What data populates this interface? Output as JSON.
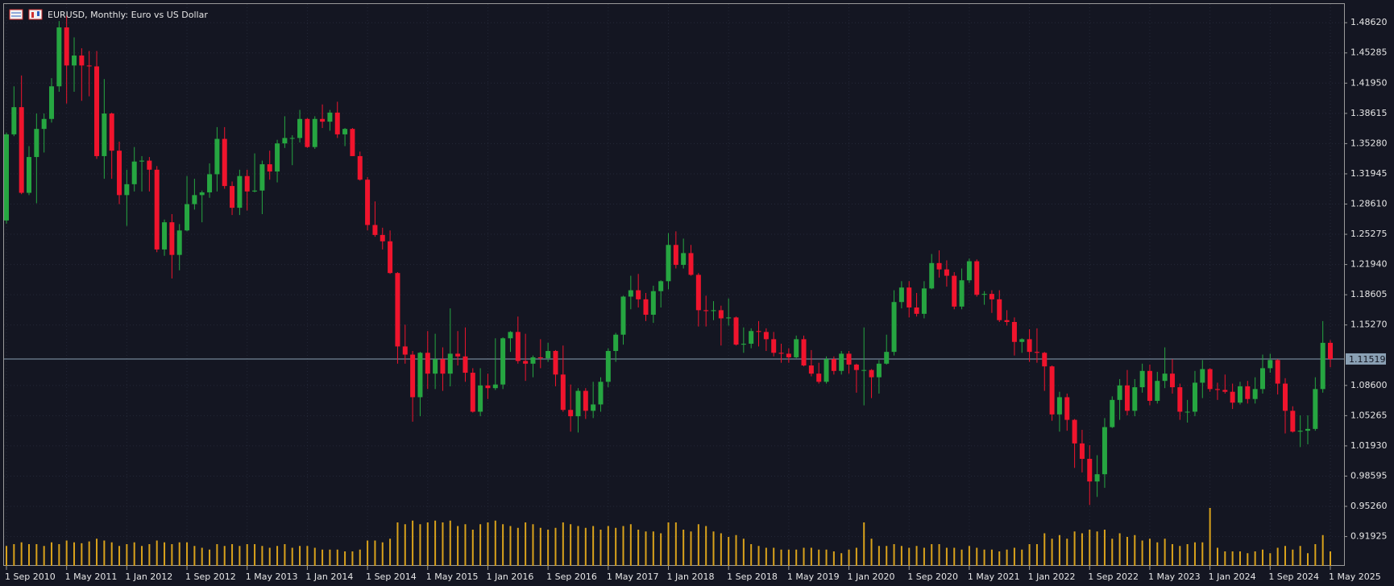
{
  "chart_data": {
    "type": "candlestick",
    "title": "EURUSD, Monthly:  Euro vs US Dollar",
    "bull_color": "#26a641",
    "bear_color": "#f0142d",
    "volume_color": "#d9a21b",
    "grid": true,
    "ylim": [
      0.8869,
      1.5068
    ],
    "yticks": [
      {
        "value": 1.4862,
        "label": "1.48620"
      },
      1.45285,
      {
        "value": 1.4195,
        "label": "1.41950"
      },
      1.38615,
      {
        "value": 1.3528,
        "label": "1.35280"
      },
      1.31945,
      {
        "value": 1.2861,
        "label": "1.28610"
      },
      1.25275,
      {
        "value": 1.2194,
        "label": "1.21940"
      },
      1.18605,
      {
        "value": 1.1527,
        "label": "1.15270"
      },
      {
        "value": 1.086,
        "label": "1.08600"
      },
      1.05265,
      {
        "value": 1.0193,
        "label": "1.01930"
      },
      0.98595,
      {
        "value": 0.9526,
        "label": "0.95260"
      },
      0.91925
    ],
    "current_price": 1.11519,
    "categories": [
      "1 Sep 2010",
      null,
      null,
      null,
      null,
      null,
      null,
      null,
      "1 May 2011",
      null,
      null,
      null,
      null,
      null,
      null,
      null,
      "1 Jan 2012",
      null,
      null,
      null,
      null,
      null,
      null,
      null,
      "1 Sep 2012",
      null,
      null,
      null,
      null,
      null,
      null,
      null,
      "1 May 2013",
      null,
      null,
      null,
      null,
      null,
      null,
      null,
      "1 Jan 2014",
      null,
      null,
      null,
      null,
      null,
      null,
      null,
      "1 Sep 2014",
      null,
      null,
      null,
      null,
      null,
      null,
      null,
      "1 May 2015",
      null,
      null,
      null,
      null,
      null,
      null,
      null,
      "1 Jan 2016",
      null,
      null,
      null,
      null,
      null,
      null,
      null,
      "1 Sep 2016",
      null,
      null,
      null,
      null,
      null,
      null,
      null,
      "1 May 2017",
      null,
      null,
      null,
      null,
      null,
      null,
      null,
      "1 Jan 2018",
      null,
      null,
      null,
      null,
      null,
      null,
      null,
      "1 Sep 2018",
      null,
      null,
      null,
      null,
      null,
      null,
      null,
      "1 May 2019",
      null,
      null,
      null,
      null,
      null,
      null,
      null,
      "1 Jan 2020",
      null,
      null,
      null,
      null,
      null,
      null,
      null,
      "1 Sep 2020",
      null,
      null,
      null,
      null,
      null,
      null,
      null,
      "1 May 2021",
      null,
      null,
      null,
      null,
      null,
      null,
      null,
      "1 Jan 2022",
      null,
      null,
      null,
      null,
      null,
      null,
      null,
      "1 Sep 2022",
      null,
      null,
      null,
      null,
      null,
      null,
      null,
      "1 May 2023",
      null,
      null,
      null,
      null,
      null,
      null,
      null,
      "1 Jan 2024",
      null,
      null,
      null,
      null,
      null,
      null,
      null,
      "1 Sep 2024",
      null,
      null,
      null,
      null,
      null,
      null,
      null,
      "1 May 2025"
    ],
    "candles": [
      [
        1.268,
        1.365,
        1.2645,
        1.363
      ],
      [
        1.363,
        1.416,
        1.361,
        1.393
      ],
      [
        1.393,
        1.428,
        1.297,
        1.2985
      ],
      [
        1.2985,
        1.35,
        1.296,
        1.338
      ],
      [
        1.338,
        1.386,
        1.287,
        1.369
      ],
      [
        1.369,
        1.386,
        1.343,
        1.38
      ],
      [
        1.38,
        1.425,
        1.376,
        1.416
      ],
      [
        1.416,
        1.488,
        1.41,
        1.481
      ],
      [
        1.481,
        1.494,
        1.397,
        1.439
      ],
      [
        1.439,
        1.47,
        1.41,
        1.45
      ],
      [
        1.45,
        1.458,
        1.4,
        1.439
      ],
      [
        1.439,
        1.455,
        1.405,
        1.438
      ],
      [
        1.438,
        1.455,
        1.336,
        1.339
      ],
      [
        1.339,
        1.424,
        1.314,
        1.386
      ],
      [
        1.386,
        1.387,
        1.314,
        1.345
      ],
      [
        1.345,
        1.355,
        1.286,
        1.296
      ],
      [
        1.296,
        1.324,
        1.262,
        1.308
      ],
      [
        1.308,
        1.349,
        1.3,
        1.333
      ],
      [
        1.333,
        1.339,
        1.3,
        1.334
      ],
      [
        1.334,
        1.338,
        1.3,
        1.324
      ],
      [
        1.324,
        1.328,
        1.233,
        1.236
      ],
      [
        1.236,
        1.269,
        1.229,
        1.266
      ],
      [
        1.266,
        1.275,
        1.204,
        1.23
      ],
      [
        1.23,
        1.264,
        1.213,
        1.257
      ],
      [
        1.257,
        1.317,
        1.256,
        1.286
      ],
      [
        1.286,
        1.314,
        1.28,
        1.296
      ],
      [
        1.296,
        1.301,
        1.266,
        1.299
      ],
      [
        1.299,
        1.331,
        1.293,
        1.319
      ],
      [
        1.319,
        1.371,
        1.3,
        1.358
      ],
      [
        1.358,
        1.371,
        1.303,
        1.306
      ],
      [
        1.306,
        1.311,
        1.274,
        1.282
      ],
      [
        1.282,
        1.324,
        1.274,
        1.317
      ],
      [
        1.317,
        1.324,
        1.279,
        1.3
      ],
      [
        1.3,
        1.342,
        1.299,
        1.301
      ],
      [
        1.301,
        1.334,
        1.275,
        1.33
      ],
      [
        1.33,
        1.345,
        1.313,
        1.322
      ],
      [
        1.322,
        1.357,
        1.31,
        1.353
      ],
      [
        1.353,
        1.383,
        1.348,
        1.359
      ],
      [
        1.359,
        1.362,
        1.329,
        1.359
      ],
      [
        1.359,
        1.39,
        1.354,
        1.38
      ],
      [
        1.38,
        1.381,
        1.348,
        1.349
      ],
      [
        1.349,
        1.383,
        1.347,
        1.38
      ],
      [
        1.38,
        1.396,
        1.37,
        1.377
      ],
      [
        1.377,
        1.39,
        1.367,
        1.387
      ],
      [
        1.387,
        1.399,
        1.359,
        1.363
      ],
      [
        1.363,
        1.37,
        1.35,
        1.369
      ],
      [
        1.369,
        1.37,
        1.339,
        1.339
      ],
      [
        1.339,
        1.344,
        1.312,
        1.313
      ],
      [
        1.313,
        1.316,
        1.257,
        1.263
      ],
      [
        1.263,
        1.289,
        1.25,
        1.252
      ],
      [
        1.252,
        1.26,
        1.236,
        1.245
      ],
      [
        1.245,
        1.257,
        1.209,
        1.21
      ],
      [
        1.21,
        1.211,
        1.11,
        1.129
      ],
      [
        1.129,
        1.153,
        1.11,
        1.12
      ],
      [
        1.12,
        1.124,
        1.046,
        1.073
      ],
      [
        1.073,
        1.123,
        1.052,
        1.122
      ],
      [
        1.122,
        1.146,
        1.082,
        1.099
      ],
      [
        1.099,
        1.143,
        1.082,
        1.115
      ],
      [
        1.115,
        1.128,
        1.08,
        1.099
      ],
      [
        1.099,
        1.171,
        1.085,
        1.121
      ],
      [
        1.121,
        1.146,
        1.108,
        1.118
      ],
      [
        1.118,
        1.15,
        1.09,
        1.1
      ],
      [
        1.1,
        1.105,
        1.056,
        1.057
      ],
      [
        1.057,
        1.105,
        1.052,
        1.086
      ],
      [
        1.086,
        1.099,
        1.071,
        1.083
      ],
      [
        1.083,
        1.138,
        1.081,
        1.087
      ],
      [
        1.087,
        1.139,
        1.082,
        1.138
      ],
      [
        1.138,
        1.146,
        1.123,
        1.145
      ],
      [
        1.145,
        1.162,
        1.11,
        1.113
      ],
      [
        1.113,
        1.143,
        1.091,
        1.11
      ],
      [
        1.11,
        1.119,
        1.095,
        1.117
      ],
      [
        1.117,
        1.137,
        1.105,
        1.116
      ],
      [
        1.116,
        1.133,
        1.112,
        1.124
      ],
      [
        1.124,
        1.125,
        1.085,
        1.098
      ],
      [
        1.098,
        1.13,
        1.057,
        1.059
      ],
      [
        1.059,
        1.087,
        1.035,
        1.052
      ],
      [
        1.052,
        1.083,
        1.034,
        1.08
      ],
      [
        1.08,
        1.083,
        1.049,
        1.058
      ],
      [
        1.058,
        1.09,
        1.05,
        1.065
      ],
      [
        1.065,
        1.095,
        1.057,
        1.09
      ],
      [
        1.09,
        1.127,
        1.084,
        1.124
      ],
      [
        1.124,
        1.144,
        1.112,
        1.142
      ],
      [
        1.142,
        1.185,
        1.131,
        1.184
      ],
      [
        1.184,
        1.207,
        1.17,
        1.191
      ],
      [
        1.191,
        1.209,
        1.172,
        1.181
      ],
      [
        1.181,
        1.188,
        1.157,
        1.164
      ],
      [
        1.164,
        1.196,
        1.155,
        1.19
      ],
      [
        1.19,
        1.202,
        1.172,
        1.201
      ],
      [
        1.201,
        1.254,
        1.192,
        1.241
      ],
      [
        1.241,
        1.256,
        1.215,
        1.219
      ],
      [
        1.219,
        1.248,
        1.215,
        1.232
      ],
      [
        1.232,
        1.241,
        1.207,
        1.208
      ],
      [
        1.208,
        1.21,
        1.151,
        1.169
      ],
      [
        1.169,
        1.185,
        1.151,
        1.168
      ],
      [
        1.168,
        1.179,
        1.158,
        1.169
      ],
      [
        1.169,
        1.174,
        1.13,
        1.16
      ],
      [
        1.16,
        1.182,
        1.152,
        1.161
      ],
      [
        1.161,
        1.162,
        1.13,
        1.131
      ],
      [
        1.131,
        1.15,
        1.122,
        1.132
      ],
      [
        1.132,
        1.149,
        1.127,
        1.146
      ],
      [
        1.146,
        1.157,
        1.129,
        1.145
      ],
      [
        1.145,
        1.149,
        1.124,
        1.137
      ],
      [
        1.137,
        1.145,
        1.118,
        1.122
      ],
      [
        1.122,
        1.132,
        1.111,
        1.121
      ],
      [
        1.121,
        1.127,
        1.111,
        1.117
      ],
      [
        1.117,
        1.141,
        1.116,
        1.137
      ],
      [
        1.137,
        1.141,
        1.107,
        1.108
      ],
      [
        1.108,
        1.125,
        1.096,
        1.099
      ],
      [
        1.099,
        1.111,
        1.088,
        1.09
      ],
      [
        1.09,
        1.118,
        1.088,
        1.115
      ],
      [
        1.115,
        1.118,
        1.098,
        1.102
      ],
      [
        1.102,
        1.124,
        1.098,
        1.121
      ],
      [
        1.121,
        1.124,
        1.099,
        1.109
      ],
      [
        1.109,
        1.11,
        1.078,
        1.103
      ],
      [
        1.103,
        1.15,
        1.064,
        1.103
      ],
      [
        1.103,
        1.104,
        1.072,
        1.095
      ],
      [
        1.095,
        1.114,
        1.077,
        1.11
      ],
      [
        1.11,
        1.142,
        1.109,
        1.123
      ],
      [
        1.123,
        1.191,
        1.119,
        1.178
      ],
      [
        1.178,
        1.201,
        1.171,
        1.194
      ],
      [
        1.194,
        1.201,
        1.161,
        1.172
      ],
      [
        1.172,
        1.188,
        1.162,
        1.165
      ],
      [
        1.165,
        1.201,
        1.16,
        1.193
      ],
      [
        1.193,
        1.231,
        1.192,
        1.221
      ],
      [
        1.221,
        1.235,
        1.205,
        1.214
      ],
      [
        1.214,
        1.224,
        1.195,
        1.207
      ],
      [
        1.207,
        1.211,
        1.17,
        1.173
      ],
      [
        1.173,
        1.215,
        1.17,
        1.202
      ],
      [
        1.202,
        1.226,
        1.199,
        1.223
      ],
      [
        1.223,
        1.225,
        1.184,
        1.186
      ],
      [
        1.186,
        1.19,
        1.175,
        1.187
      ],
      [
        1.187,
        1.191,
        1.166,
        1.181
      ],
      [
        1.181,
        1.191,
        1.156,
        1.158
      ],
      [
        1.158,
        1.169,
        1.152,
        1.156
      ],
      [
        1.156,
        1.161,
        1.119,
        1.134
      ],
      [
        1.134,
        1.138,
        1.122,
        1.137
      ],
      [
        1.137,
        1.148,
        1.112,
        1.123
      ],
      [
        1.123,
        1.149,
        1.111,
        1.122
      ],
      [
        1.122,
        1.123,
        1.08,
        1.107
      ],
      [
        1.107,
        1.108,
        1.047,
        1.054
      ],
      [
        1.054,
        1.079,
        1.035,
        1.073
      ],
      [
        1.073,
        1.077,
        1.036,
        1.048
      ],
      [
        1.048,
        1.049,
        0.995,
        1.022
      ],
      [
        1.022,
        1.037,
        0.99,
        1.005
      ],
      [
        1.005,
        1.02,
        0.954,
        0.98
      ],
      [
        0.98,
        1.009,
        0.963,
        0.988
      ],
      [
        0.988,
        1.05,
        0.973,
        1.04
      ],
      [
        1.04,
        1.074,
        1.039,
        1.07
      ],
      [
        1.07,
        1.093,
        1.048,
        1.086
      ],
      [
        1.086,
        1.103,
        1.053,
        1.058
      ],
      [
        1.058,
        1.093,
        1.052,
        1.084
      ],
      [
        1.084,
        1.11,
        1.078,
        1.102
      ],
      [
        1.102,
        1.109,
        1.064,
        1.069
      ],
      [
        1.069,
        1.101,
        1.066,
        1.091
      ],
      [
        1.091,
        1.128,
        1.083,
        1.099
      ],
      [
        1.099,
        1.115,
        1.077,
        1.084
      ],
      [
        1.084,
        1.088,
        1.048,
        1.057
      ],
      [
        1.057,
        1.07,
        1.045,
        1.057
      ],
      [
        1.057,
        1.102,
        1.052,
        1.089
      ],
      [
        1.089,
        1.114,
        1.072,
        1.104
      ],
      [
        1.104,
        1.105,
        1.079,
        1.082
      ],
      [
        1.082,
        1.089,
        1.07,
        1.081
      ],
      [
        1.081,
        1.098,
        1.077,
        1.079
      ],
      [
        1.079,
        1.088,
        1.06,
        1.067
      ],
      [
        1.067,
        1.09,
        1.065,
        1.085
      ],
      [
        1.085,
        1.091,
        1.066,
        1.071
      ],
      [
        1.071,
        1.095,
        1.066,
        1.082
      ],
      [
        1.082,
        1.12,
        1.077,
        1.105
      ],
      [
        1.105,
        1.121,
        1.1,
        1.114
      ],
      [
        1.114,
        1.115,
        1.076,
        1.088
      ],
      [
        1.088,
        1.094,
        1.033,
        1.058
      ],
      [
        1.058,
        1.063,
        1.034,
        1.035
      ],
      [
        1.035,
        1.053,
        1.018,
        1.036
      ],
      [
        1.036,
        1.053,
        1.021,
        1.038
      ],
      [
        1.038,
        1.095,
        1.036,
        1.082
      ],
      [
        1.082,
        1.157,
        1.078,
        1.133
      ],
      [
        1.133,
        1.136,
        1.106,
        1.11519
      ]
    ],
    "volumes": [
      22,
      24,
      26,
      24,
      24,
      22,
      26,
      24,
      28,
      26,
      25,
      27,
      30,
      28,
      26,
      22,
      24,
      26,
      22,
      24,
      28,
      26,
      24,
      26,
      26,
      22,
      20,
      18,
      24,
      22,
      24,
      22,
      24,
      24,
      22,
      20,
      22,
      24,
      20,
      22,
      22,
      20,
      18,
      18,
      18,
      16,
      16,
      18,
      28,
      28,
      26,
      30,
      48,
      46,
      50,
      46,
      48,
      50,
      48,
      50,
      44,
      46,
      40,
      46,
      48,
      50,
      46,
      44,
      42,
      48,
      46,
      42,
      40,
      42,
      48,
      46,
      44,
      42,
      44,
      40,
      44,
      42,
      44,
      46,
      40,
      38,
      38,
      36,
      48,
      48,
      40,
      38,
      46,
      44,
      38,
      36,
      32,
      34,
      30,
      24,
      22,
      20,
      20,
      18,
      18,
      18,
      20,
      20,
      18,
      18,
      16,
      14,
      18,
      20,
      48,
      30,
      22,
      22,
      24,
      22,
      20,
      22,
      20,
      24,
      24,
      20,
      20,
      18,
      22,
      20,
      18,
      18,
      16,
      18,
      20,
      18,
      24,
      24,
      36,
      30,
      34,
      30,
      38,
      36,
      40,
      38,
      40,
      30,
      36,
      32,
      34,
      28,
      30,
      26,
      30,
      24,
      22,
      24,
      26,
      26,
      64,
      20,
      16,
      16,
      16,
      14,
      16,
      18,
      14,
      20,
      22,
      18,
      22,
      14,
      24,
      34,
      16
    ]
  }
}
